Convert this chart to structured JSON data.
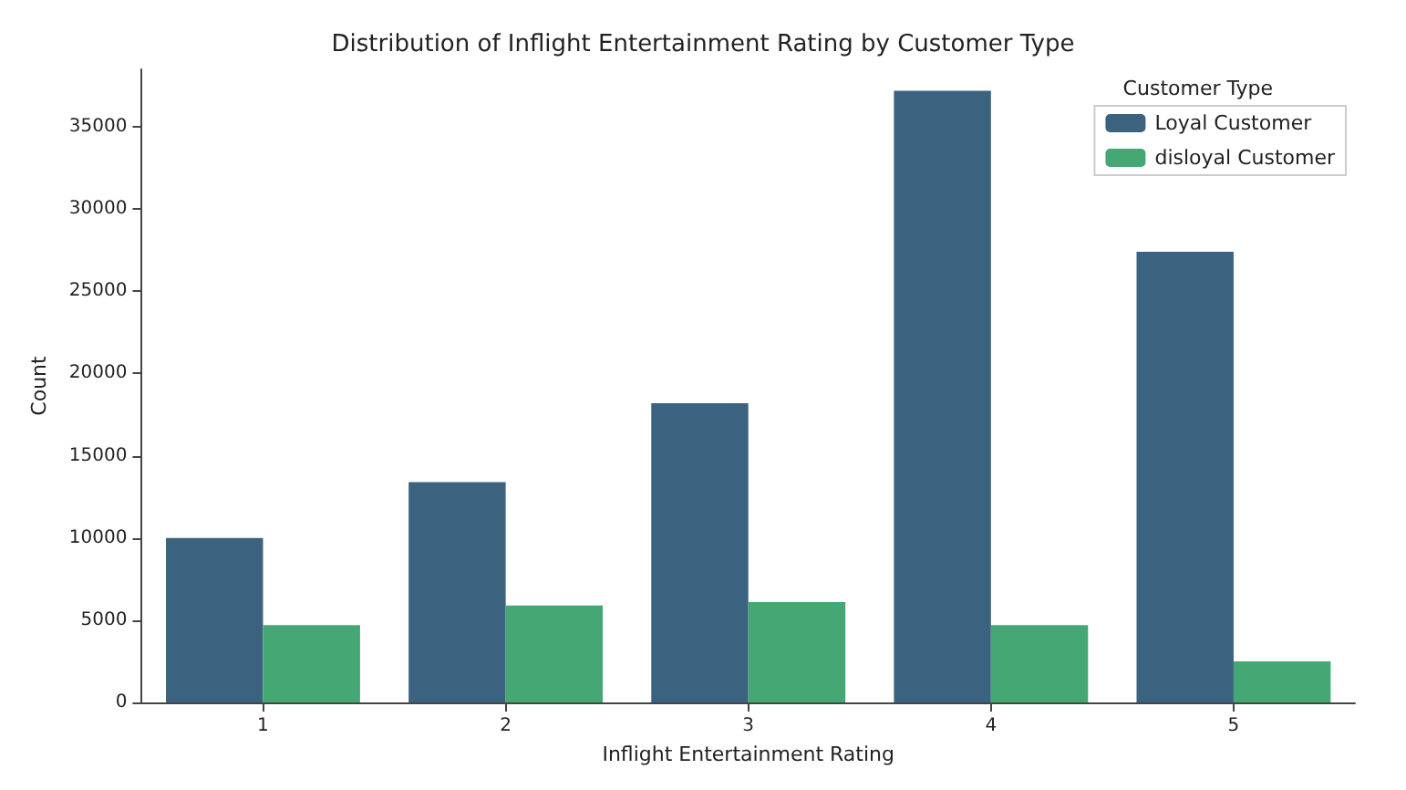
{
  "chart_data": {
    "type": "bar",
    "title": "Distribution of Inflight Entertainment Rating by Customer Type",
    "xlabel": "Inflight Entertainment Rating",
    "ylabel": "Count",
    "legend_title": "Customer Type",
    "categories": [
      "1",
      "2",
      "3",
      "4",
      "5"
    ],
    "series": [
      {
        "name": "Loyal Customer",
        "color": "#3b6380",
        "values": [
          10000,
          13400,
          18200,
          37200,
          27400
        ]
      },
      {
        "name": "disloyal Customer",
        "color": "#45a874",
        "values": [
          4700,
          5900,
          6100,
          4700,
          2500
        ]
      }
    ],
    "ylim": [
      0,
      38500
    ],
    "yticks": [
      0,
      5000,
      10000,
      15000,
      20000,
      25000,
      30000,
      35000
    ],
    "grid": false,
    "legend": "top right"
  }
}
